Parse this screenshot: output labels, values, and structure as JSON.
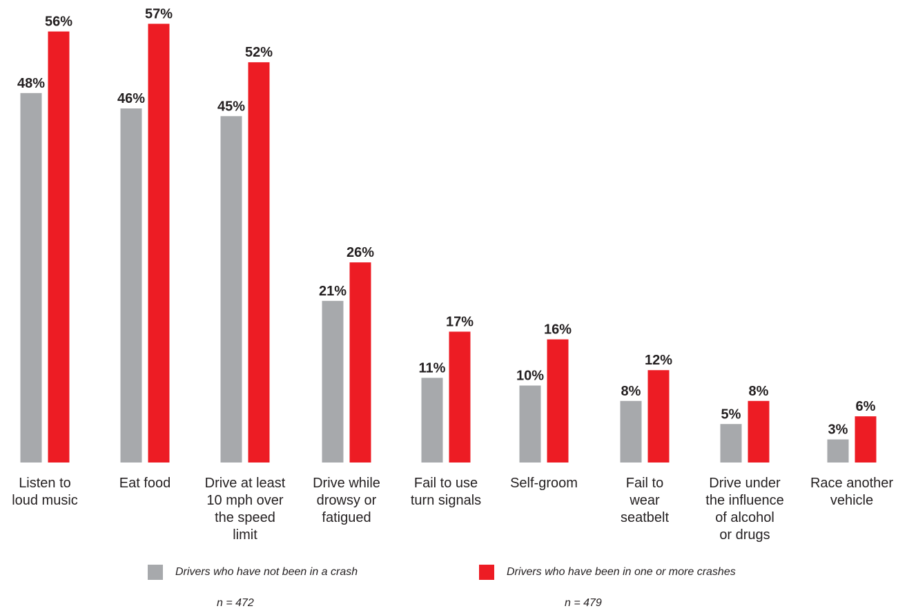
{
  "chart_data": {
    "type": "bar",
    "categories": [
      "Listen to loud music",
      "Eat food",
      "Drive at least 10 mph over the speed limit",
      "Drive while drowsy or fatigued",
      "Fail to use turn signals",
      "Self-groom",
      "Fail to wear seatbelt",
      "Drive under the influence of alcohol or drugs",
      "Race another vehicle"
    ],
    "series": [
      {
        "name": "Drivers who have not been in a crash",
        "values": [
          48,
          46,
          45,
          21,
          11,
          10,
          8,
          5,
          3
        ],
        "labels": [
          "48%",
          "46%",
          "45%",
          "21%",
          "11%",
          "10%",
          "8%",
          "5%",
          "3%"
        ]
      },
      {
        "name": "Drivers who have been in one or more crashes",
        "values": [
          56,
          57,
          52,
          26,
          17,
          16,
          12,
          8,
          6
        ],
        "labels": [
          "56%",
          "57%",
          "52%",
          "26%",
          "17%",
          "16%",
          "12%",
          "8%",
          "6%"
        ]
      }
    ],
    "ylim": [
      0,
      57
    ],
    "grid": false,
    "legend_position": "bottom",
    "colors": [
      "#a7a9ac",
      "#ed1c24"
    ]
  },
  "legend": {
    "items": [
      {
        "label": "Drivers who have not been in a crash",
        "n": "n = 472",
        "color": "#a7a9ac"
      },
      {
        "label": "Drivers who have been in one or more crashes",
        "n": "n = 479",
        "color": "#ed1c24"
      }
    ]
  }
}
